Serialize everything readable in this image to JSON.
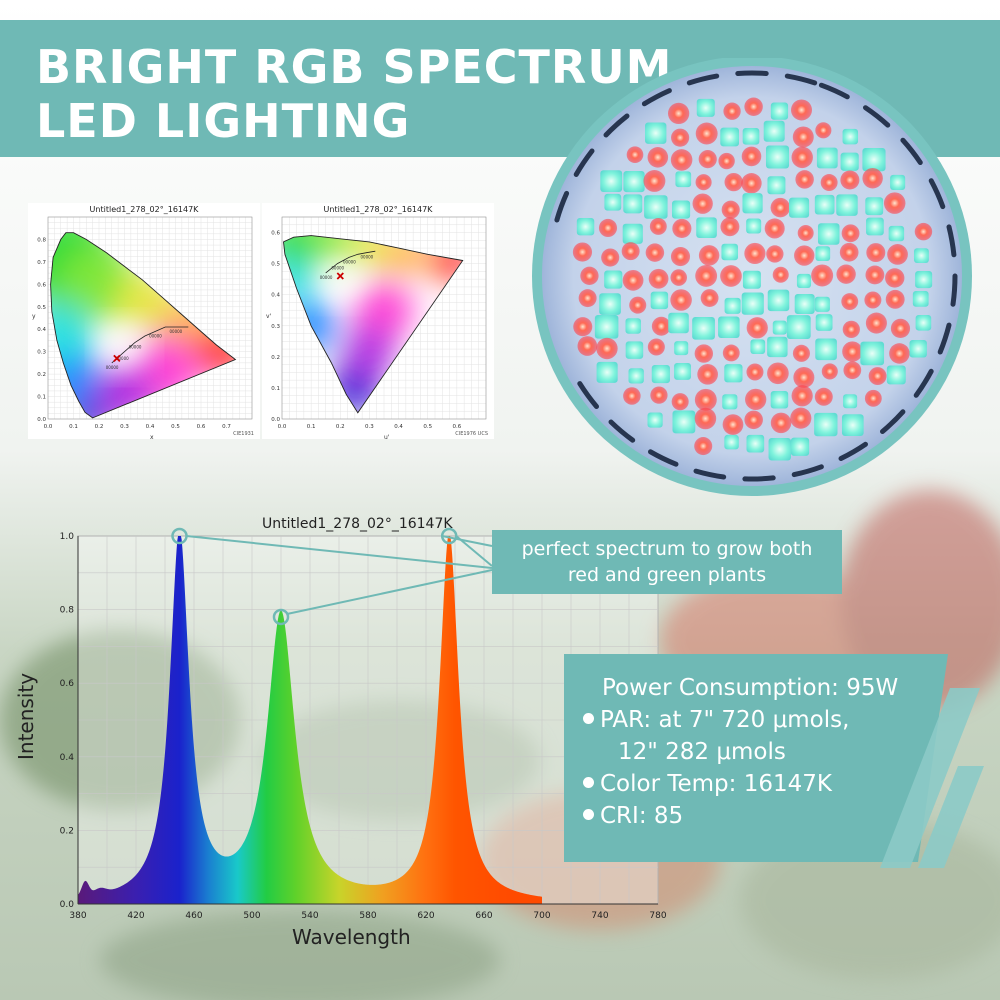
{
  "banner": {
    "title_line1": "BRIGHT RGB SPECTRUM",
    "title_line2": "LED LIGHTING"
  },
  "cie_charts": [
    {
      "title": "Untitled1_278_02°_16147K",
      "xlabel": "x",
      "ylabel": "y",
      "footnote": "CIE1931",
      "x_ticks": [
        "0.0",
        "0.1",
        "0.2",
        "0.3",
        "0.4",
        "0.5",
        "0.6",
        "0.7"
      ],
      "y_ticks": [
        "0.0",
        "0.1",
        "0.2",
        "0.3",
        "0.4",
        "0.5",
        "0.6",
        "0.7",
        "0.8"
      ]
    },
    {
      "title": "Untitled1_278_02°_16147K",
      "xlabel": "u'",
      "ylabel": "v'",
      "footnote": "CIE1976 UCS",
      "x_ticks": [
        "0.0",
        "0.1",
        "0.2",
        "0.3",
        "0.4",
        "0.5",
        "0.6"
      ],
      "y_ticks": [
        "0.0",
        "0.1",
        "0.2",
        "0.3",
        "0.4",
        "0.5",
        "0.6"
      ]
    }
  ],
  "callout": {
    "line1": "perfect spectrum to grow both",
    "line2": "red and green plants"
  },
  "specs": {
    "power": "Power Consumption: 95W",
    "par1": "PAR: at 7\" 720 μmols,",
    "par2": "12\" 282 μmols",
    "temp": "Color Temp: 16147K",
    "cri": "CRI: 85"
  },
  "colors": {
    "accent": "#6fb9b5",
    "blue_peak": "#1a22cc",
    "green_peak": "#22cc22",
    "red_peak": "#ff5500"
  },
  "chart_data": {
    "type": "area",
    "title": "Untitled1_278_02°_16147K",
    "xlabel": "Wavelength",
    "ylabel": "Intensity",
    "xlim": [
      380,
      780
    ],
    "ylim": [
      0,
      1.0
    ],
    "x_ticks": [
      380,
      420,
      460,
      500,
      540,
      580,
      620,
      660,
      700,
      740,
      780
    ],
    "y_ticks": [
      0,
      0.2,
      0.4,
      0.6,
      0.8,
      1.0
    ],
    "grid": true,
    "peaks": [
      {
        "name": "blue",
        "x": 450,
        "y": 1.0,
        "width": 9
      },
      {
        "name": "green",
        "x": 520,
        "y": 0.78,
        "width": 13
      },
      {
        "name": "red",
        "x": 636,
        "y": 1.0,
        "width": 9
      }
    ],
    "x": [
      380,
      384,
      388,
      392,
      396,
      400,
      410,
      420,
      430,
      440,
      445,
      450,
      455,
      460,
      470,
      480,
      490,
      500,
      510,
      515,
      520,
      525,
      530,
      540,
      550,
      560,
      570,
      580,
      590,
      600,
      610,
      620,
      625,
      630,
      636,
      640,
      645,
      650,
      660,
      670,
      680,
      700,
      740,
      780
    ],
    "values": [
      0.005,
      0.04,
      0.02,
      0.02,
      0.015,
      0.01,
      0.01,
      0.03,
      0.12,
      0.55,
      0.85,
      1.0,
      0.85,
      0.55,
      0.2,
      0.12,
      0.18,
      0.35,
      0.65,
      0.74,
      0.78,
      0.73,
      0.62,
      0.35,
      0.15,
      0.06,
      0.02,
      0.01,
      0.01,
      0.02,
      0.08,
      0.3,
      0.6,
      0.9,
      1.0,
      0.9,
      0.55,
      0.28,
      0.06,
      0.01,
      0.0,
      0.0,
      0.0,
      0.0
    ]
  }
}
